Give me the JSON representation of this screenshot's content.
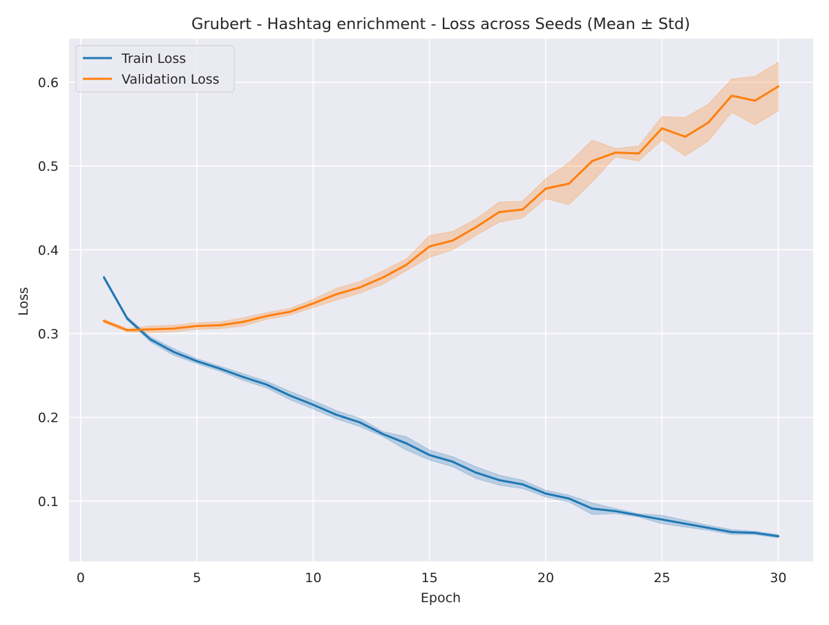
{
  "chart_data": {
    "type": "line",
    "title": "Grubert - Hashtag enrichment - Loss across Seeds (Mean ± Std)",
    "xlabel": "Epoch",
    "ylabel": "Loss",
    "xlim": [
      -0.5,
      31.5
    ],
    "ylim": [
      0.028,
      0.652
    ],
    "xticks": [
      0,
      5,
      10,
      15,
      20,
      25,
      30
    ],
    "yticks": [
      0.1,
      0.2,
      0.3,
      0.4,
      0.5,
      0.6
    ],
    "grid": true,
    "legend_position": "top-left",
    "x": [
      1,
      2,
      3,
      4,
      5,
      6,
      7,
      8,
      9,
      10,
      11,
      12,
      13,
      14,
      15,
      16,
      17,
      18,
      19,
      20,
      21,
      22,
      23,
      24,
      25,
      26,
      27,
      28,
      29,
      30
    ],
    "series": [
      {
        "name": "Train Loss",
        "color": "#1f77b4",
        "values": [
          0.367,
          0.318,
          0.293,
          0.278,
          0.267,
          0.258,
          0.248,
          0.239,
          0.226,
          0.215,
          0.203,
          0.194,
          0.18,
          0.169,
          0.155,
          0.147,
          0.134,
          0.125,
          0.12,
          0.109,
          0.103,
          0.091,
          0.088,
          0.083,
          0.078,
          0.073,
          0.068,
          0.063,
          0.062,
          0.058
        ],
        "std": [
          0.002,
          0.002,
          0.003,
          0.004,
          0.003,
          0.003,
          0.004,
          0.004,
          0.005,
          0.005,
          0.005,
          0.005,
          0.003,
          0.008,
          0.006,
          0.006,
          0.007,
          0.006,
          0.005,
          0.004,
          0.004,
          0.007,
          0.003,
          0.002,
          0.005,
          0.004,
          0.003,
          0.003,
          0.002,
          0.002
        ]
      },
      {
        "name": "Validation Loss",
        "color": "#ff7f0e",
        "values": [
          0.315,
          0.304,
          0.305,
          0.306,
          0.309,
          0.31,
          0.314,
          0.321,
          0.326,
          0.336,
          0.347,
          0.355,
          0.367,
          0.382,
          0.404,
          0.411,
          0.427,
          0.445,
          0.448,
          0.473,
          0.479,
          0.506,
          0.516,
          0.515,
          0.545,
          0.535,
          0.552,
          0.584,
          0.578,
          0.595
        ],
        "std": [
          0.002,
          0.002,
          0.004,
          0.004,
          0.004,
          0.004,
          0.005,
          0.004,
          0.004,
          0.005,
          0.007,
          0.007,
          0.008,
          0.007,
          0.013,
          0.011,
          0.01,
          0.012,
          0.01,
          0.012,
          0.025,
          0.025,
          0.005,
          0.009,
          0.014,
          0.023,
          0.022,
          0.02,
          0.029,
          0.029
        ]
      }
    ]
  }
}
